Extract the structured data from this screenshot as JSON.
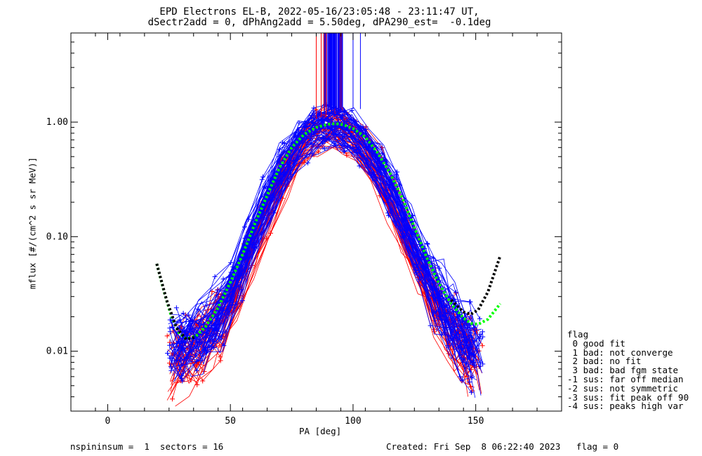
{
  "header": {
    "title_line1": "EPD Electrons EL-B, 2022-05-16/23:05:48 - 23:11:47 UT,",
    "title_line2": "dSectr2add = 0, dPhAng2add = 5.50deg, dPA290_est=  -0.1deg"
  },
  "footer": {
    "left": "nspininsum =  1  sectors = 16",
    "right": "Created: Fri Sep  8 06:22:40 2023   flag = 0"
  },
  "legend": {
    "title": "flag",
    "items": [
      " 0 good fit",
      " 1 bad: not converge",
      " 2 bad: no fit",
      " 3 bad: bad fgm state",
      "-1 sus: far off median",
      "-2 sus: not symmetric",
      "-3 sus: fit peak off 90",
      "-4 sus: peaks high var"
    ]
  },
  "colors": {
    "red_series": "#ff0000",
    "blue_series": "#0000ff",
    "fit_green": "#00ff00",
    "fit_black": "#000000"
  },
  "chart_data": {
    "type": "line",
    "xlabel": "PA [deg]",
    "ylabel": "mflux [#/(cm^2 s sr MeV)]",
    "xlim": [
      -15,
      185
    ],
    "ylim": [
      0.003,
      6.0
    ],
    "yscale": "log",
    "x_ticks": [
      0,
      50,
      100,
      150
    ],
    "x_tick_labels": [
      "0",
      "50",
      "100",
      "150"
    ],
    "y_ticks": [
      0.01,
      0.1,
      1.0
    ],
    "y_tick_labels": [
      "0.01",
      "0.10",
      "1.00"
    ],
    "series": [
      {
        "color": "red",
        "x": [
          27,
          32,
          38,
          45,
          52,
          58,
          65,
          72,
          79,
          85,
          90,
          94,
          98,
          104,
          110,
          116,
          122,
          128,
          134,
          140,
          146,
          150
        ],
        "values": [
          0.008,
          0.009,
          0.011,
          0.016,
          0.03,
          0.07,
          0.16,
          0.36,
          0.62,
          0.82,
          0.9,
          0.88,
          0.8,
          0.6,
          0.38,
          0.2,
          0.1,
          0.05,
          0.027,
          0.015,
          0.01,
          0.008
        ]
      },
      {
        "color": "blue",
        "x": [
          27,
          32,
          38,
          45,
          52,
          58,
          65,
          72,
          79,
          85,
          90,
          94,
          98,
          104,
          110,
          116,
          122,
          128,
          134,
          140,
          146,
          150
        ],
        "values": [
          0.011,
          0.012,
          0.014,
          0.02,
          0.04,
          0.09,
          0.2,
          0.42,
          0.68,
          0.85,
          0.92,
          0.9,
          0.82,
          0.64,
          0.42,
          0.23,
          0.12,
          0.06,
          0.032,
          0.018,
          0.012,
          0.009
        ]
      },
      {
        "color": "green",
        "x": [
          20,
          23,
          26,
          29,
          32,
          36,
          40,
          45,
          50,
          55,
          60,
          65,
          70,
          75,
          80,
          85,
          90,
          93,
          96,
          100,
          105,
          110,
          115,
          120,
          125,
          130,
          135,
          140,
          145,
          148,
          151,
          155,
          160
        ],
        "values": [
          0.058,
          0.033,
          0.02,
          0.0145,
          0.0128,
          0.0135,
          0.0165,
          0.024,
          0.04,
          0.07,
          0.13,
          0.23,
          0.4,
          0.6,
          0.78,
          0.9,
          0.96,
          0.97,
          0.95,
          0.88,
          0.74,
          0.54,
          0.36,
          0.22,
          0.12,
          0.066,
          0.039,
          0.026,
          0.0195,
          0.0175,
          0.0172,
          0.019,
          0.026
        ]
      },
      {
        "color": "black",
        "x": [
          20,
          24,
          28,
          32,
          36,
          140,
          145,
          148,
          151,
          155,
          160
        ],
        "values": [
          0.058,
          0.028,
          0.016,
          0.0127,
          0.0133,
          0.028,
          0.022,
          0.021,
          0.023,
          0.033,
          0.068
        ]
      }
    ]
  }
}
